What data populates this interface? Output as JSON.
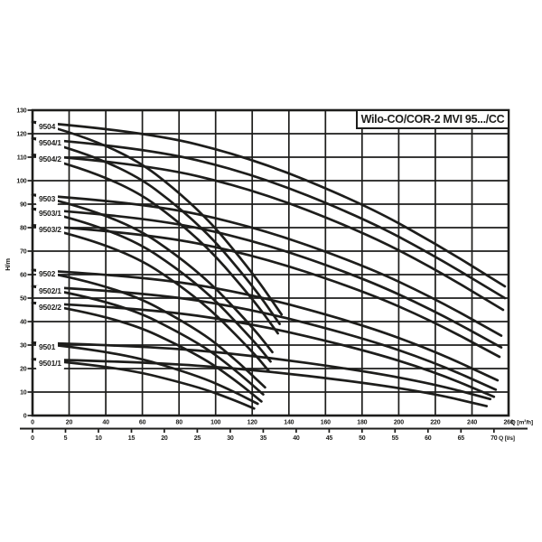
{
  "title": "Wilo-CO/COR-2 MVI 95.../CC",
  "colors": {
    "ink": "#1d1d1b",
    "bg": "#ffffff"
  },
  "chart_data": {
    "type": "line",
    "title": "Wilo-CO/COR-2 MVI 95.../CC",
    "ylabel": "H/m",
    "xlabel_primary": "Q [m³/h]",
    "xlabel_secondary": "Q [l/s]",
    "xlim": [
      0,
      260
    ],
    "ylim": [
      0,
      130
    ],
    "grid": true,
    "legend_position": "curve-start-labels-left",
    "y_ticks": [
      0,
      10,
      20,
      30,
      40,
      50,
      60,
      70,
      80,
      90,
      100,
      110,
      120,
      130
    ],
    "x_ticks_m3h": [
      0,
      20,
      40,
      60,
      80,
      100,
      120,
      140,
      160,
      180,
      200,
      220,
      240,
      260
    ],
    "x_ticks_ls": [
      0,
      5,
      10,
      15,
      20,
      25,
      30,
      35,
      40,
      45,
      50,
      55,
      60,
      65,
      70
    ],
    "series": [
      {
        "name": "9504",
        "shutoff_head_m": 125,
        "two_pump": {
          "q": [
            0,
            60,
            120,
            180,
            220,
            258
          ],
          "h": [
            125,
            121.2,
            109.6,
            90.4,
            73.3,
            55
          ]
        },
        "one_pump": {
          "q": [
            0,
            45,
            90,
            120,
            136
          ],
          "h": [
            125,
            116.1,
            89.1,
            61.1,
            43
          ]
        }
      },
      {
        "name": "9504/1",
        "shutoff_head_m": 118,
        "two_pump": {
          "q": [
            0,
            60,
            120,
            180,
            220,
            258
          ],
          "h": [
            118,
            114.3,
            103.1,
            84.4,
            67.8,
            50
          ]
        },
        "one_pump": {
          "q": [
            0,
            45,
            90,
            120,
            135
          ],
          "h": [
            118,
            109.2,
            82.9,
            55.6,
            39
          ]
        }
      },
      {
        "name": "9504/2",
        "shutoff_head_m": 111,
        "two_pump": {
          "q": [
            0,
            60,
            120,
            180,
            220,
            257
          ],
          "h": [
            111,
            107.4,
            96.5,
            78.4,
            62.3,
            45
          ]
        },
        "one_pump": {
          "q": [
            0,
            45,
            90,
            120,
            134
          ],
          "h": [
            111,
            102.4,
            76.7,
            50,
            35
          ]
        }
      },
      {
        "name": "9503",
        "shutoff_head_m": 94,
        "two_pump": {
          "q": [
            0,
            60,
            120,
            180,
            220,
            256
          ],
          "h": [
            94,
            90.7,
            80.8,
            64.3,
            49.7,
            34
          ]
        },
        "one_pump": {
          "q": [
            0,
            45,
            90,
            120,
            131
          ],
          "h": [
            94,
            86.1,
            62.4,
            37.8,
            27
          ]
        }
      },
      {
        "name": "9503/1",
        "shutoff_head_m": 88,
        "two_pump": {
          "q": [
            0,
            60,
            120,
            180,
            220,
            256
          ],
          "h": [
            88,
            84.8,
            75,
            58.8,
            44.4,
            29
          ]
        },
        "one_pump": {
          "q": [
            0,
            45,
            90,
            120,
            130
          ],
          "h": [
            88,
            80.2,
            56.9,
            32.6,
            23
          ]
        }
      },
      {
        "name": "9503/2",
        "shutoff_head_m": 81,
        "two_pump": {
          "q": [
            0,
            60,
            120,
            180,
            220,
            255
          ],
          "h": [
            81,
            77.9,
            68.7,
            53.3,
            39.6,
            25
          ]
        },
        "one_pump": {
          "q": [
            0,
            45,
            90,
            120,
            129
          ],
          "h": [
            81,
            73.4,
            50.8,
            27.4,
            19
          ]
        }
      },
      {
        "name": "9502",
        "shutoff_head_m": 62,
        "two_pump": {
          "q": [
            0,
            60,
            120,
            180,
            220,
            254
          ],
          "h": [
            62,
            59.4,
            51.7,
            38.8,
            27.3,
            15
          ]
        },
        "one_pump": {
          "q": [
            0,
            45,
            90,
            110,
            127
          ],
          "h": [
            62,
            55.7,
            36.9,
            24.5,
            12
          ]
        }
      },
      {
        "name": "9502/1",
        "shutoff_head_m": 55,
        "two_pump": {
          "q": [
            0,
            60,
            120,
            180,
            220,
            253
          ],
          "h": [
            55,
            52.6,
            45.3,
            33.2,
            22.5,
            11
          ]
        },
        "one_pump": {
          "q": [
            0,
            45,
            90,
            110,
            126
          ],
          "h": [
            55,
            49.1,
            31.5,
            19.9,
            9
          ]
        }
      },
      {
        "name": "9502/2",
        "shutoff_head_m": 48,
        "two_pump": {
          "q": [
            0,
            60,
            120,
            180,
            220,
            252
          ],
          "h": [
            48,
            45.8,
            39.2,
            28.2,
            18.5,
            8
          ]
        },
        "one_pump": {
          "q": [
            0,
            45,
            90,
            110,
            125
          ],
          "h": [
            48,
            42.6,
            26.2,
            15.5,
            6
          ]
        }
      },
      {
        "name": "9501",
        "shutoff_head_m": 31,
        "two_pump": {
          "q": [
            0,
            60,
            120,
            180,
            220,
            250
          ],
          "h": [
            31,
            29.7,
            25.7,
            19.1,
            13.3,
            7
          ]
        },
        "one_pump": {
          "q": [
            0,
            45,
            90,
            110,
            123
          ],
          "h": [
            31,
            27.5,
            17.1,
            10.2,
            5
          ]
        }
      },
      {
        "name": "9501/1",
        "shutoff_head_m": 24,
        "two_pump": {
          "q": [
            0,
            60,
            120,
            180,
            220,
            248
          ],
          "h": [
            24,
            22.9,
            19.6,
            14.1,
            9.2,
            4
          ]
        },
        "one_pump": {
          "q": [
            0,
            45,
            90,
            110,
            121
          ],
          "h": [
            24,
            21.1,
            12.4,
            6.6,
            3
          ]
        }
      }
    ]
  }
}
